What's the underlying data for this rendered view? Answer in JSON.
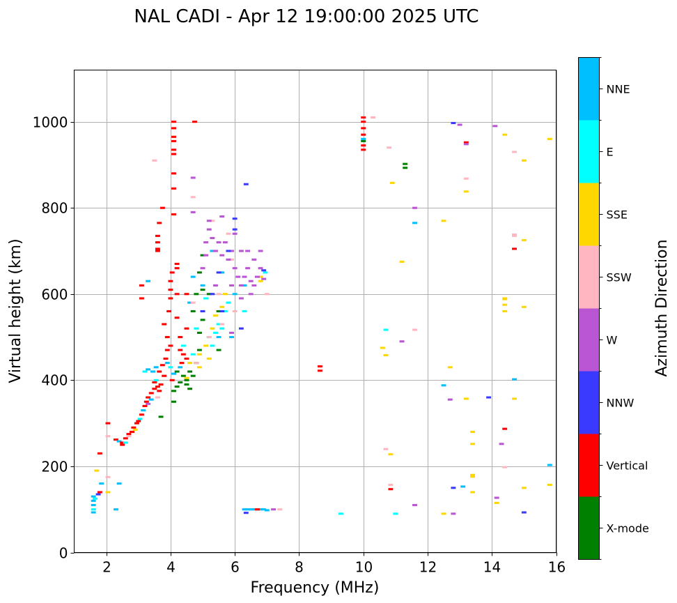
{
  "chart_data": {
    "type": "scatter",
    "title": "NAL CADI - Apr 12 19:00:00 2025 UTC",
    "xlabel": "Frequency (MHz)",
    "ylabel": "Virtual height (km)",
    "xlim": [
      1,
      16
    ],
    "ylim": [
      0,
      1120
    ],
    "xticks": [
      2,
      4,
      6,
      8,
      10,
      12,
      14,
      16
    ],
    "yticks": [
      0,
      200,
      400,
      600,
      800,
      1000
    ],
    "grid": true,
    "mark_width_mhz": 0.15,
    "mark_height_km": 5,
    "colorbar": {
      "label": "Azimuth Direction",
      "categories": [
        {
          "name": "X-mode",
          "color": "#008000"
        },
        {
          "name": "Vertical",
          "color": "#ff0000"
        },
        {
          "name": "NNW",
          "color": "#3a3aff"
        },
        {
          "name": "W",
          "color": "#ba55d3"
        },
        {
          "name": "SSW",
          "color": "#ffb6c1"
        },
        {
          "name": "SSE",
          "color": "#ffd700"
        },
        {
          "name": "E",
          "color": "#00ffff"
        },
        {
          "name": "NNE",
          "color": "#00bfff"
        }
      ]
    },
    "points_fields": [
      "frequency_mhz",
      "height_km",
      "direction_index"
    ],
    "points": [
      [
        1.6,
        93,
        7
      ],
      [
        1.6,
        100,
        6
      ],
      [
        1.6,
        110,
        7
      ],
      [
        1.6,
        120,
        7
      ],
      [
        1.6,
        130,
        7
      ],
      [
        1.65,
        125,
        6
      ],
      [
        1.75,
        135,
        2
      ],
      [
        1.8,
        140,
        1
      ],
      [
        1.85,
        160,
        7
      ],
      [
        1.7,
        190,
        5
      ],
      [
        1.8,
        230,
        1
      ],
      [
        2.05,
        140,
        5
      ],
      [
        2.05,
        175,
        4
      ],
      [
        2.05,
        270,
        4
      ],
      [
        2.05,
        300,
        1
      ],
      [
        2.3,
        100,
        7
      ],
      [
        2.4,
        160,
        7
      ],
      [
        2.3,
        262,
        1
      ],
      [
        2.4,
        258,
        7
      ],
      [
        2.5,
        255,
        1
      ],
      [
        2.5,
        250,
        1
      ],
      [
        2.6,
        265,
        1
      ],
      [
        2.6,
        255,
        6
      ],
      [
        2.7,
        275,
        1
      ],
      [
        2.7,
        270,
        4
      ],
      [
        2.8,
        280,
        1
      ],
      [
        2.85,
        290,
        1
      ],
      [
        2.9,
        285,
        5
      ],
      [
        2.95,
        300,
        1
      ],
      [
        3.0,
        305,
        1
      ],
      [
        3.05,
        310,
        6
      ],
      [
        3.1,
        320,
        1
      ],
      [
        3.15,
        330,
        7
      ],
      [
        3.2,
        340,
        1
      ],
      [
        3.25,
        350,
        1
      ],
      [
        3.3,
        360,
        1
      ],
      [
        3.3,
        345,
        3
      ],
      [
        3.4,
        370,
        1
      ],
      [
        3.4,
        355,
        7
      ],
      [
        3.5,
        380,
        1
      ],
      [
        3.5,
        395,
        1
      ],
      [
        3.55,
        400,
        6
      ],
      [
        3.6,
        385,
        1
      ],
      [
        3.65,
        375,
        1
      ],
      [
        3.7,
        390,
        1
      ],
      [
        3.7,
        315,
        0
      ],
      [
        3.6,
        360,
        4
      ],
      [
        3.45,
        420,
        7
      ],
      [
        3.3,
        425,
        7
      ],
      [
        3.2,
        420,
        6
      ],
      [
        3.55,
        430,
        7
      ],
      [
        3.65,
        420,
        1
      ],
      [
        3.75,
        435,
        1
      ],
      [
        3.8,
        410,
        1
      ],
      [
        3.9,
        440,
        7
      ],
      [
        4.0,
        430,
        6
      ],
      [
        4.1,
        415,
        7
      ],
      [
        4.05,
        400,
        1
      ],
      [
        4.2,
        420,
        0
      ],
      [
        4.3,
        430,
        7
      ],
      [
        4.4,
        410,
        0
      ],
      [
        4.1,
        350,
        0
      ],
      [
        4.1,
        375,
        0
      ],
      [
        4.2,
        385,
        0
      ],
      [
        4.3,
        395,
        0
      ],
      [
        4.5,
        405,
        5
      ],
      [
        4.5,
        400,
        0
      ],
      [
        4.6,
        420,
        0
      ],
      [
        4.7,
        410,
        0
      ],
      [
        3.85,
        450,
        1
      ],
      [
        3.9,
        470,
        1
      ],
      [
        3.9,
        500,
        1
      ],
      [
        3.8,
        530,
        1
      ],
      [
        4.0,
        480,
        1
      ],
      [
        3.95,
        560,
        1
      ],
      [
        4.0,
        590,
        1
      ],
      [
        4.0,
        610,
        1
      ],
      [
        4.0,
        630,
        1
      ],
      [
        4.05,
        650,
        1
      ],
      [
        4.2,
        660,
        1
      ],
      [
        4.2,
        670,
        1
      ],
      [
        4.2,
        545,
        1
      ],
      [
        4.3,
        500,
        1
      ],
      [
        4.3,
        470,
        1
      ],
      [
        4.35,
        440,
        1
      ],
      [
        4.4,
        460,
        1
      ],
      [
        4.5,
        450,
        1
      ],
      [
        4.5,
        520,
        1
      ],
      [
        4.5,
        600,
        1
      ],
      [
        4.2,
        600,
        1
      ],
      [
        3.6,
        700,
        1
      ],
      [
        3.6,
        720,
        1
      ],
      [
        3.6,
        735,
        1
      ],
      [
        3.65,
        765,
        1
      ],
      [
        3.75,
        800,
        1
      ],
      [
        4.1,
        785,
        1
      ],
      [
        4.1,
        845,
        1
      ],
      [
        4.1,
        880,
        1
      ],
      [
        4.1,
        925,
        1
      ],
      [
        4.1,
        935,
        1
      ],
      [
        4.1,
        965,
        1
      ],
      [
        4.1,
        985,
        1
      ],
      [
        4.1,
        1000,
        1
      ],
      [
        4.1,
        955,
        1
      ],
      [
        4.75,
        1000,
        1
      ],
      [
        3.1,
        590,
        1
      ],
      [
        3.1,
        620,
        1
      ],
      [
        3.3,
        630,
        7
      ],
      [
        3.5,
        910,
        4
      ],
      [
        3.6,
        705,
        1
      ],
      [
        4.8,
        440,
        0
      ],
      [
        4.9,
        470,
        0
      ],
      [
        4.9,
        510,
        0
      ],
      [
        5.0,
        540,
        0
      ],
      [
        5.0,
        610,
        0
      ],
      [
        4.9,
        650,
        0
      ],
      [
        5.0,
        690,
        0
      ],
      [
        4.7,
        560,
        0
      ],
      [
        4.8,
        600,
        0
      ],
      [
        5.2,
        600,
        0
      ],
      [
        5.5,
        560,
        0
      ],
      [
        5.5,
        470,
        0
      ],
      [
        4.6,
        380,
        0
      ],
      [
        4.5,
        390,
        0
      ],
      [
        4.8,
        520,
        6
      ],
      [
        5.0,
        560,
        6
      ],
      [
        5.2,
        500,
        6
      ],
      [
        5.4,
        510,
        6
      ],
      [
        5.5,
        530,
        6
      ],
      [
        5.6,
        520,
        6
      ],
      [
        5.3,
        480,
        6
      ],
      [
        5.7,
        560,
        6
      ],
      [
        5.8,
        580,
        6
      ],
      [
        4.7,
        460,
        6
      ],
      [
        4.4,
        480,
        6
      ],
      [
        5.1,
        590,
        6
      ],
      [
        5.0,
        620,
        7
      ],
      [
        4.6,
        580,
        7
      ],
      [
        4.7,
        640,
        7
      ],
      [
        5.3,
        700,
        7
      ],
      [
        5.6,
        650,
        7
      ],
      [
        6.0,
        600,
        7
      ],
      [
        5.9,
        500,
        7
      ],
      [
        5.5,
        500,
        7
      ],
      [
        6.3,
        620,
        7
      ],
      [
        6.95,
        650,
        6
      ],
      [
        6.3,
        560,
        6
      ],
      [
        4.9,
        460,
        5
      ],
      [
        5.1,
        480,
        5
      ],
      [
        5.3,
        520,
        5
      ],
      [
        5.4,
        550,
        5
      ],
      [
        5.6,
        570,
        5
      ],
      [
        5.7,
        600,
        5
      ],
      [
        6.8,
        630,
        5
      ],
      [
        6.8,
        640,
        5
      ],
      [
        4.6,
        440,
        5
      ],
      [
        4.9,
        430,
        5
      ],
      [
        5.2,
        450,
        5
      ],
      [
        4.7,
        825,
        4
      ],
      [
        4.7,
        580,
        4
      ],
      [
        5.2,
        500,
        4
      ],
      [
        5.6,
        530,
        4
      ],
      [
        5.9,
        680,
        4
      ],
      [
        5.8,
        740,
        4
      ],
      [
        6.0,
        560,
        4
      ],
      [
        5.3,
        770,
        4
      ],
      [
        5.5,
        600,
        4
      ],
      [
        7.0,
        600,
        4
      ],
      [
        4.8,
        440,
        4
      ],
      [
        4.7,
        870,
        3
      ],
      [
        4.7,
        790,
        3
      ],
      [
        5.2,
        750,
        3
      ],
      [
        5.3,
        730,
        3
      ],
      [
        5.4,
        700,
        3
      ],
      [
        5.5,
        720,
        3
      ],
      [
        5.6,
        690,
        3
      ],
      [
        5.7,
        720,
        3
      ],
      [
        5.8,
        680,
        3
      ],
      [
        5.9,
        700,
        3
      ],
      [
        6.0,
        660,
        3
      ],
      [
        6.1,
        640,
        3
      ],
      [
        6.2,
        620,
        3
      ],
      [
        6.3,
        640,
        3
      ],
      [
        6.4,
        660,
        3
      ],
      [
        6.5,
        630,
        3
      ],
      [
        6.6,
        620,
        3
      ],
      [
        6.7,
        640,
        3
      ],
      [
        6.8,
        660,
        3
      ],
      [
        6.9,
        635,
        3
      ],
      [
        6.2,
        700,
        3
      ],
      [
        6.4,
        700,
        3
      ],
      [
        6.6,
        680,
        3
      ],
      [
        6.8,
        700,
        3
      ],
      [
        6.5,
        600,
        3
      ],
      [
        6.2,
        590,
        3
      ],
      [
        5.2,
        770,
        3
      ],
      [
        5.6,
        780,
        3
      ],
      [
        6.0,
        740,
        3
      ],
      [
        5.9,
        620,
        3
      ],
      [
        5.4,
        620,
        3
      ],
      [
        5.0,
        660,
        3
      ],
      [
        5.1,
        720,
        3
      ],
      [
        5.1,
        690,
        3
      ],
      [
        5.9,
        510,
        3
      ],
      [
        6.0,
        775,
        2
      ],
      [
        6.0,
        750,
        2
      ],
      [
        5.8,
        700,
        2
      ],
      [
        5.5,
        650,
        2
      ],
      [
        5.3,
        600,
        2
      ],
      [
        5.6,
        560,
        2
      ],
      [
        6.35,
        855,
        2
      ],
      [
        6.2,
        520,
        2
      ],
      [
        6.9,
        655,
        2
      ],
      [
        5.0,
        560,
        2
      ],
      [
        6.3,
        100,
        7
      ],
      [
        6.4,
        100,
        7
      ],
      [
        6.5,
        100,
        7
      ],
      [
        6.6,
        100,
        7
      ],
      [
        6.7,
        100,
        6
      ],
      [
        6.8,
        100,
        7
      ],
      [
        6.9,
        100,
        7
      ],
      [
        7.0,
        98,
        7
      ],
      [
        6.7,
        100,
        1
      ],
      [
        6.35,
        92,
        2
      ],
      [
        7.2,
        100,
        3
      ],
      [
        7.4,
        100,
        4
      ],
      [
        10.0,
        1010,
        1
      ],
      [
        10.0,
        1000,
        1
      ],
      [
        10.0,
        985,
        1
      ],
      [
        10.0,
        970,
        1
      ],
      [
        10.0,
        960,
        7
      ],
      [
        10.0,
        955,
        0
      ],
      [
        10.0,
        945,
        1
      ],
      [
        10.0,
        935,
        1
      ],
      [
        10.3,
        1010,
        4
      ],
      [
        8.65,
        432,
        1
      ],
      [
        8.65,
        422,
        1
      ],
      [
        9.3,
        90,
        6
      ],
      [
        10.8,
        940,
        4
      ],
      [
        10.9,
        858,
        5
      ],
      [
        11.3,
        902,
        0
      ],
      [
        11.3,
        893,
        0
      ],
      [
        11.6,
        800,
        3
      ],
      [
        11.6,
        765,
        7
      ],
      [
        11.2,
        675,
        5
      ],
      [
        10.7,
        517,
        6
      ],
      [
        11.2,
        490,
        3
      ],
      [
        10.6,
        475,
        5
      ],
      [
        10.7,
        458,
        5
      ],
      [
        11.6,
        517,
        4
      ],
      [
        10.7,
        240,
        4
      ],
      [
        10.85,
        228,
        5
      ],
      [
        10.85,
        157,
        4
      ],
      [
        10.85,
        147,
        1
      ],
      [
        11.0,
        90,
        6
      ],
      [
        11.6,
        110,
        3
      ],
      [
        12.5,
        770,
        5
      ],
      [
        12.8,
        997,
        2
      ],
      [
        13.0,
        993,
        3
      ],
      [
        13.2,
        952,
        1
      ],
      [
        13.2,
        948,
        3
      ],
      [
        13.2,
        868,
        4
      ],
      [
        13.2,
        838,
        5
      ],
      [
        12.5,
        388,
        7
      ],
      [
        12.7,
        430,
        5
      ],
      [
        12.7,
        355,
        3
      ],
      [
        13.2,
        357,
        5
      ],
      [
        13.9,
        360,
        2
      ],
      [
        13.4,
        280,
        5
      ],
      [
        13.4,
        252,
        5
      ],
      [
        13.4,
        180,
        5
      ],
      [
        13.4,
        176,
        5
      ],
      [
        13.1,
        153,
        7
      ],
      [
        12.8,
        150,
        2
      ],
      [
        13.4,
        140,
        5
      ],
      [
        12.5,
        90,
        5
      ],
      [
        12.8,
        90,
        3
      ],
      [
        14.1,
        990,
        3
      ],
      [
        14.4,
        970,
        5
      ],
      [
        14.7,
        930,
        4
      ],
      [
        15.0,
        910,
        5
      ],
      [
        15.8,
        960,
        5
      ],
      [
        14.7,
        738,
        4
      ],
      [
        14.7,
        735,
        4
      ],
      [
        15.0,
        725,
        5
      ],
      [
        14.7,
        705,
        1
      ],
      [
        14.4,
        590,
        5
      ],
      [
        14.4,
        588,
        5
      ],
      [
        14.4,
        575,
        5
      ],
      [
        14.4,
        560,
        5
      ],
      [
        15.0,
        570,
        5
      ],
      [
        14.7,
        402,
        7
      ],
      [
        14.7,
        357,
        5
      ],
      [
        14.4,
        287,
        1
      ],
      [
        14.3,
        252,
        3
      ],
      [
        14.4,
        198,
        4
      ],
      [
        15.8,
        203,
        7
      ],
      [
        15.8,
        157,
        5
      ],
      [
        15.0,
        150,
        5
      ],
      [
        14.15,
        127,
        3
      ],
      [
        14.15,
        115,
        5
      ],
      [
        15.0,
        93,
        2
      ]
    ]
  }
}
